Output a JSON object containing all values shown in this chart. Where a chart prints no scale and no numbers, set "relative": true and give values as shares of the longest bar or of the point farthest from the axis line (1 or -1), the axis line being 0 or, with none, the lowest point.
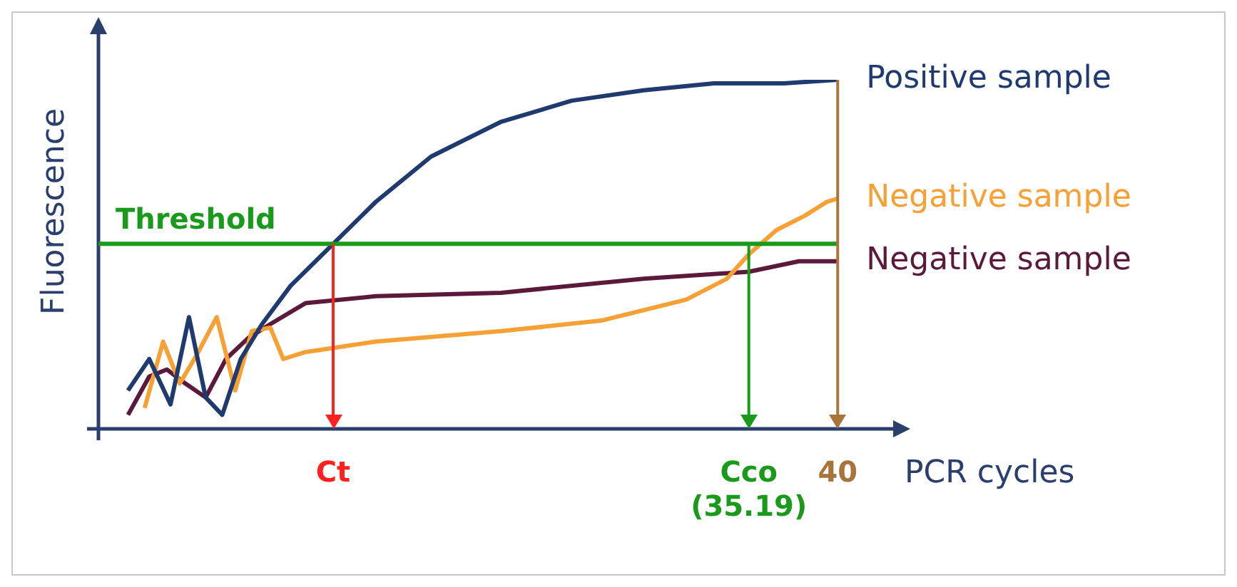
{
  "chart_data": {
    "type": "line",
    "xlabel": "PCR cycles",
    "ylabel": "Fluorescence",
    "relative": true,
    "xlim": [
      0,
      43
    ],
    "xticks": [
      {
        "value": 12.7,
        "label": "Ct"
      },
      {
        "value": 35.19,
        "label": "Cco (35.19)"
      },
      40
    ],
    "tick_labels": "x",
    "grid": false,
    "legend": false,
    "marker": "none",
    "series": [
      {
        "name": "Positive sample",
        "color": "#1f3a6e",
        "x": [
          1.6,
          2.75,
          3.9,
          4.9,
          5.8,
          6.7,
          7.7,
          8.85,
          10.4,
          12.7,
          15.0,
          18.0,
          21.8,
          25.6,
          29.5,
          33.3,
          37.1,
          40
        ],
        "values": [
          0.11,
          0.2,
          0.07,
          0.32,
          0.09,
          0.04,
          0.2,
          0.3,
          0.41,
          0.53,
          0.65,
          0.78,
          0.88,
          0.94,
          0.97,
          0.99,
          0.99,
          1.0
        ]
      },
      {
        "name": "Negative sample",
        "color": "#f7a035",
        "x": [
          2.5,
          3.5,
          4.4,
          5.3,
          6.4,
          7.4,
          8.3,
          9.3,
          10.0,
          11.2,
          15.0,
          21.8,
          27.2,
          31.8,
          34.0,
          35.19,
          36.7,
          38.2,
          39.4,
          40
        ],
        "values": [
          0.06,
          0.25,
          0.13,
          0.21,
          0.32,
          0.11,
          0.28,
          0.29,
          0.2,
          0.22,
          0.25,
          0.28,
          0.31,
          0.37,
          0.43,
          0.5,
          0.57,
          0.61,
          0.65,
          0.66
        ]
      },
      {
        "name": "Negative sample",
        "color": "#5c1a3a",
        "x": [
          1.6,
          2.75,
          3.7,
          4.7,
          5.8,
          6.9,
          8.1,
          9.3,
          11.2,
          15.0,
          21.8,
          29.5,
          35.19,
          37.9,
          39.0,
          40
        ],
        "values": [
          0.04,
          0.15,
          0.17,
          0.13,
          0.09,
          0.2,
          0.26,
          0.3,
          0.36,
          0.38,
          0.39,
          0.43,
          0.45,
          0.48,
          0.48,
          0.48
        ]
      }
    ],
    "ref_lines": [
      {
        "axis": "y",
        "value": 0.53,
        "label": "Threshold",
        "color": "#1a9a1a"
      },
      {
        "axis": "x",
        "value": 12.7,
        "color": "#ff2020"
      },
      {
        "axis": "x",
        "value": 35.19,
        "color": "#1a9a1a"
      },
      {
        "axis": "x",
        "value": 40,
        "color": "#a8743c"
      }
    ]
  }
}
